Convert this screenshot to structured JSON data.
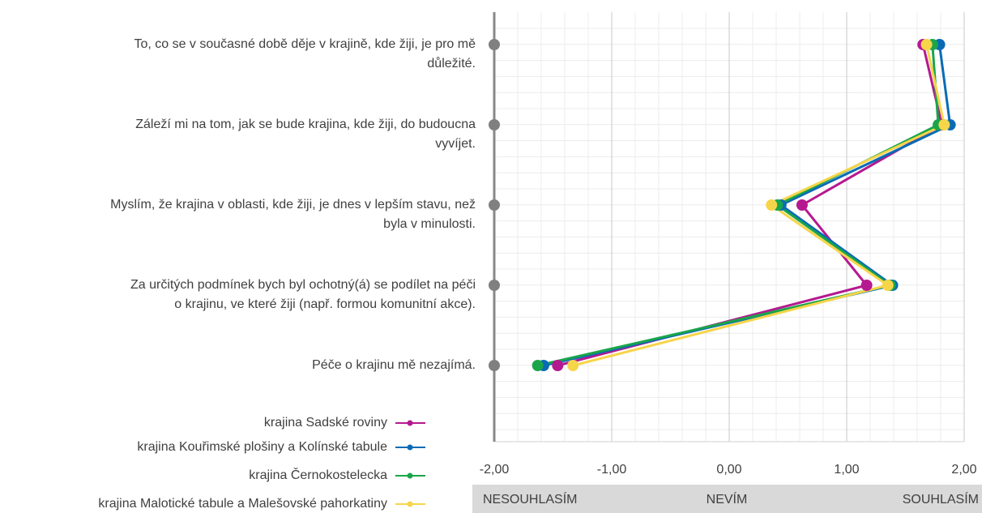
{
  "chart_data": {
    "type": "line",
    "orientation": "horizontal",
    "categories": [
      "To, co se v současné době děje v krajině, kde žiji, je pro mě\ndůležité.",
      "Záleží mi na tom, jak se bude krajina, kde žiji, do budoucna\nvyvíjet.",
      "Myslím, že krajina v oblasti, kde žiji, je dnes v lepším stavu, než\nbyla v minulosti.",
      "Za určitých podmínek bych byl ochotný(á) se podílet na péči\no krajinu, ve které žiji (např. formou komunitní akce).",
      "Péče o krajinu mě nezajímá."
    ],
    "series": [
      {
        "name": "krajina Sadské roviny",
        "color": "#b5198f",
        "values": [
          1.65,
          1.81,
          0.62,
          1.17,
          -1.46
        ]
      },
      {
        "name": "krajina Kouřimské plošiny a Kolínské tabule",
        "color": "#0a6bb5",
        "values": [
          1.79,
          1.88,
          0.44,
          1.39,
          -1.58
        ]
      },
      {
        "name": "krajina Černokostelecka",
        "color": "#1aa54a",
        "values": [
          1.73,
          1.78,
          0.41,
          1.37,
          -1.63
        ]
      },
      {
        "name": "krajina Malotické tabule a Malešovské pahorkatiny",
        "color": "#f7d54a",
        "values": [
          1.68,
          1.83,
          0.36,
          1.35,
          -1.33
        ]
      }
    ],
    "xlim": [
      -2,
      2
    ],
    "xticks": [
      {
        "value": -2,
        "label": "-2,00"
      },
      {
        "value": -1,
        "label": "-1,00"
      },
      {
        "value": 0,
        "label": "0,00"
      },
      {
        "value": 1,
        "label": "1,00"
      },
      {
        "value": 2,
        "label": "2,00"
      }
    ],
    "grid": true,
    "legend": "bottom-left",
    "scale_labels": [
      "NESOUHLASÍM",
      "NEVÍM",
      "SOUHLASÍM"
    ]
  }
}
